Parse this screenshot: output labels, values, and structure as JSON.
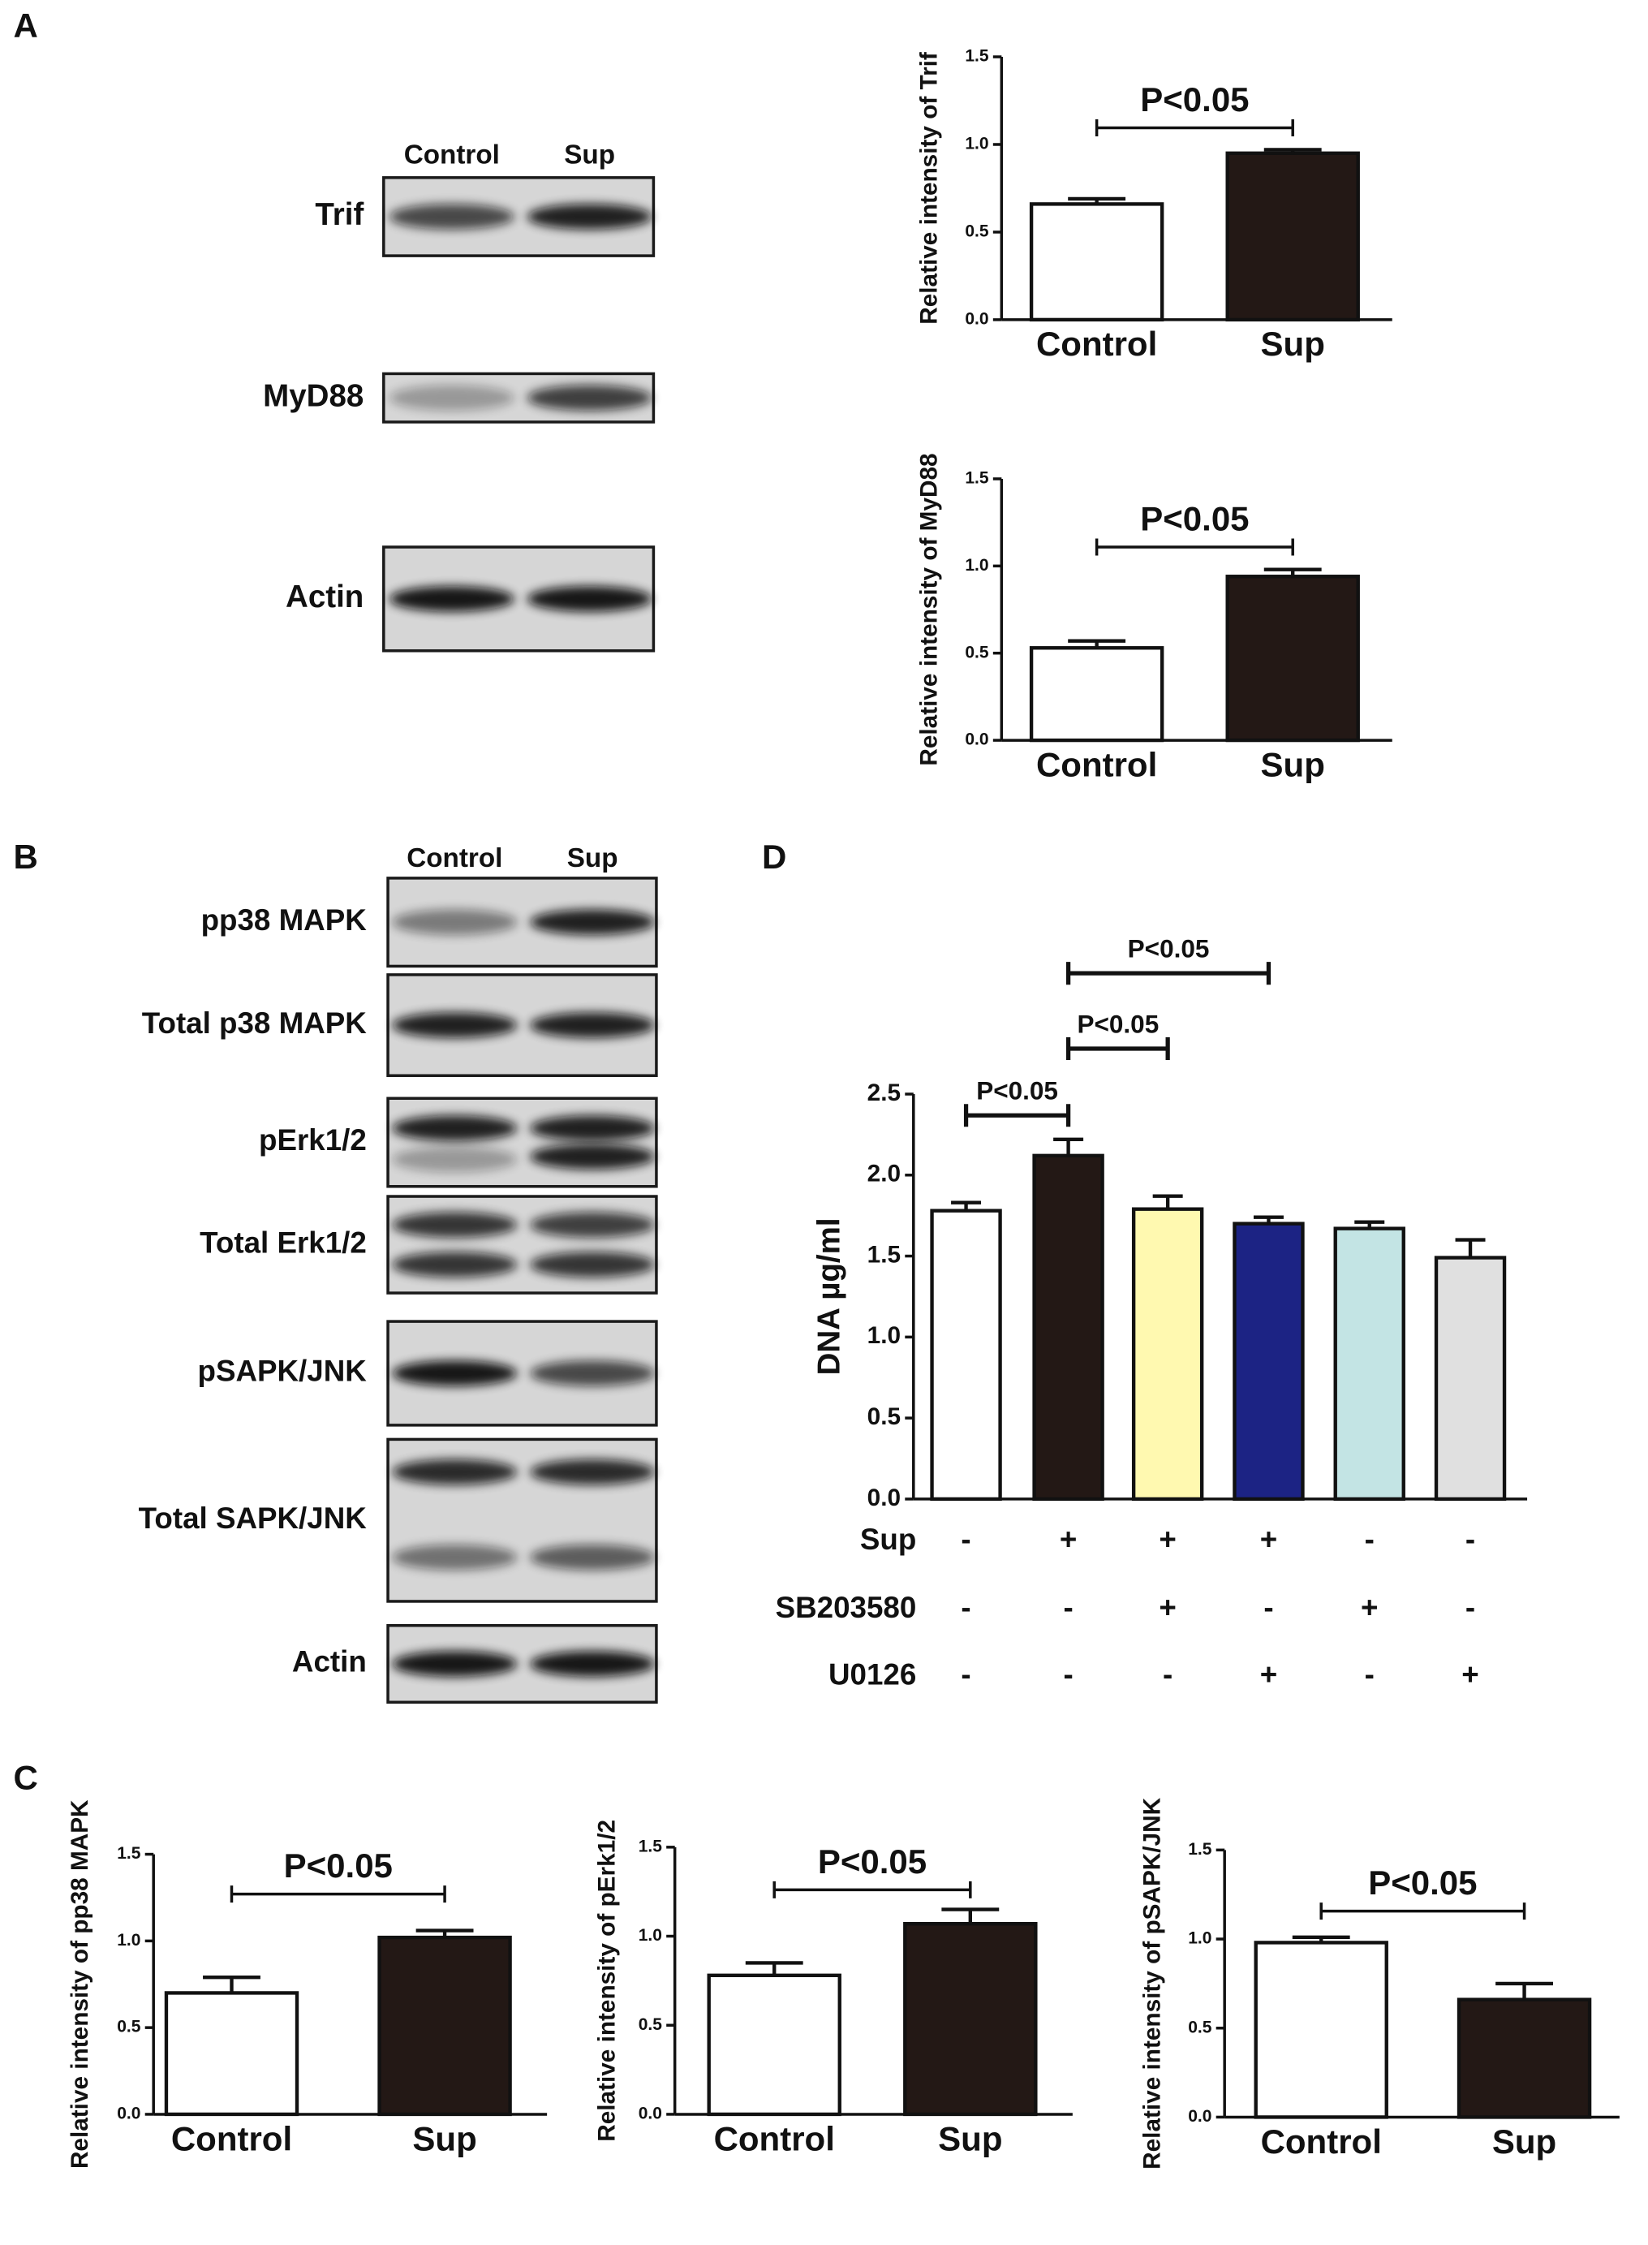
{
  "panel_labels": [
    "A",
    "B",
    "C",
    "D"
  ],
  "blots": [
    {
      "lanes": [
        "Control",
        "Sup"
      ],
      "bands": [
        "Trif",
        "MyD88",
        "Actin"
      ]
    },
    {
      "lanes": [
        "Control",
        "Sup"
      ],
      "bands": [
        "pp38 MAPK",
        "Total p38 MAPK",
        "pErk1/2",
        "Total Erk1/2",
        "pSAPK/JNK",
        "Total SAPK/JNK",
        "Actin"
      ]
    }
  ],
  "chart_data": [
    {
      "type": "bar",
      "ylabel": "Relative intensity of Trif",
      "categories": [
        "Control",
        "Sup"
      ],
      "values": [
        0.66,
        0.95
      ],
      "errors": [
        0.03,
        0.02
      ],
      "colors": [
        "#ffffff",
        "#231815"
      ],
      "ylim": [
        0,
        1.5
      ],
      "yticks": [
        {
          "value": 0,
          "label": "0.0"
        },
        0.5,
        {
          "value": 1,
          "label": "1.0"
        },
        1.5
      ],
      "annotations": [
        {
          "text": "P<0.05",
          "from": 0,
          "to": 1
        }
      ]
    },
    {
      "type": "bar",
      "ylabel": "Relative intensity of MyD88",
      "categories": [
        "Control",
        "Sup"
      ],
      "values": [
        0.53,
        0.94
      ],
      "errors": [
        0.04,
        0.04
      ],
      "colors": [
        "#ffffff",
        "#231815"
      ],
      "ylim": [
        0,
        1.5
      ],
      "yticks": [
        {
          "value": 0,
          "label": "0.0"
        },
        0.5,
        {
          "value": 1,
          "label": "1.0"
        },
        1.5
      ],
      "annotations": [
        {
          "text": "P<0.05",
          "from": 0,
          "to": 1
        }
      ]
    },
    {
      "type": "bar",
      "ylabel": "Relative intensity of pp38 MAPK",
      "categories": [
        "Control",
        "Sup"
      ],
      "values": [
        0.7,
        1.02
      ],
      "errors": [
        0.09,
        0.04
      ],
      "colors": [
        "#ffffff",
        "#231815"
      ],
      "ylim": [
        0,
        1.5
      ],
      "yticks": [
        {
          "value": 0,
          "label": "0.0"
        },
        0.5,
        {
          "value": 1,
          "label": "1.0"
        },
        1.5
      ],
      "annotations": [
        {
          "text": "P<0.05",
          "from": 0,
          "to": 1
        }
      ]
    },
    {
      "type": "bar",
      "ylabel": "Relative intensity of pErk1/2",
      "categories": [
        "Control",
        "Sup"
      ],
      "values": [
        0.78,
        1.07
      ],
      "errors": [
        0.07,
        0.08
      ],
      "colors": [
        "#ffffff",
        "#231815"
      ],
      "ylim": [
        0,
        1.5
      ],
      "yticks": [
        {
          "value": 0,
          "label": "0.0"
        },
        0.5,
        {
          "value": 1,
          "label": "1.0"
        },
        1.5
      ],
      "annotations": [
        {
          "text": "P<0.05",
          "from": 0,
          "to": 1
        }
      ]
    },
    {
      "type": "bar",
      "ylabel": "Relative intensity of pSAPK/JNK",
      "categories": [
        "Control",
        "Sup"
      ],
      "values": [
        0.98,
        0.66
      ],
      "errors": [
        0.03,
        0.09
      ],
      "colors": [
        "#ffffff",
        "#231815"
      ],
      "ylim": [
        0,
        1.5
      ],
      "yticks": [
        {
          "value": 0,
          "label": "0.0"
        },
        0.5,
        {
          "value": 1,
          "label": "1.0"
        },
        1.5
      ],
      "annotations": [
        {
          "text": "P<0.05",
          "from": 0,
          "to": 1
        }
      ]
    },
    {
      "type": "bar",
      "ylabel": "DNA µg/ml",
      "values": [
        1.78,
        2.12,
        1.79,
        1.7,
        1.67,
        1.49
      ],
      "errors": [
        0.05,
        0.1,
        0.08,
        0.04,
        0.04,
        0.11
      ],
      "colors": [
        "#ffffff",
        "#231815",
        "#fff9b0",
        "#1c2384",
        "#c3e4e4",
        "#e0e0e0"
      ],
      "ylim": [
        0,
        2.5
      ],
      "yticks": [
        {
          "value": 0,
          "label": "0.0"
        },
        0.5,
        {
          "value": 1,
          "label": "1.0"
        },
        1.5,
        {
          "value": 2,
          "label": "2.0"
        },
        2.5
      ],
      "treatments": [
        {
          "name": "Sup",
          "signs": [
            "-",
            "+",
            "+",
            "+",
            "-",
            "-"
          ]
        },
        {
          "name": "SB203580",
          "signs": [
            "-",
            "-",
            "+",
            "-",
            "+",
            "-"
          ]
        },
        {
          "name": "U0126",
          "signs": [
            "-",
            "-",
            "-",
            "+",
            "-",
            "+"
          ]
        }
      ],
      "annotations": [
        {
          "text": "P<0.05",
          "from": 0,
          "to": 1
        },
        {
          "text": "P<0.05",
          "from": 1,
          "to": 2
        },
        {
          "text": "P<0.05",
          "from": 1,
          "to": 3
        }
      ]
    }
  ]
}
